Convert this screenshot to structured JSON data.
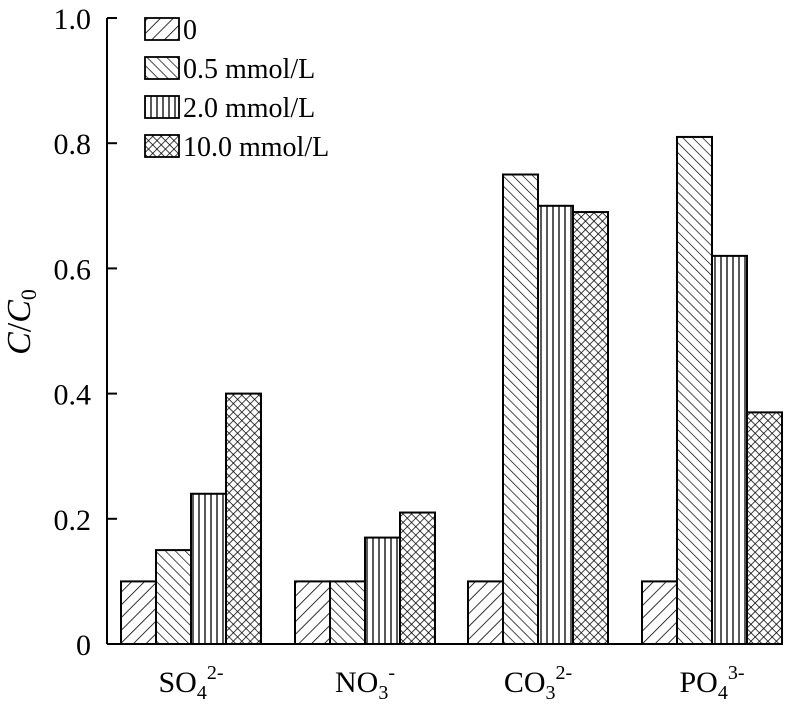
{
  "chart_data": {
    "type": "bar",
    "title": "",
    "ylabel": "C/C0",
    "ylabel_parts": {
      "main": "C",
      "sep": "/",
      "main2": "C",
      "sub": "0"
    },
    "xlabel": "",
    "ylim": [
      0,
      1.0
    ],
    "yticks": [
      "0",
      "0.2",
      "0.4",
      "0.6",
      "0.8",
      "1.0"
    ],
    "ytick_values": [
      0,
      0.2,
      0.4,
      0.6,
      0.8,
      1.0
    ],
    "categories": [
      {
        "base": "SO",
        "sub": "4",
        "sup": "2-"
      },
      {
        "base": "NO",
        "sub": "3",
        "sup": "-"
      },
      {
        "base": "CO",
        "sub": "3",
        "sup": "2-"
      },
      {
        "base": "PO",
        "sub": "4",
        "sup": "3-"
      }
    ],
    "series": [
      {
        "name": "0",
        "pattern": "diag-right",
        "values": [
          0.1,
          0.1,
          0.1,
          0.1
        ]
      },
      {
        "name": "0.5 mmol/L",
        "pattern": "diag-left",
        "values": [
          0.15,
          0.1,
          0.75,
          0.81
        ]
      },
      {
        "name": "2.0 mmol/L",
        "pattern": "vertical",
        "values": [
          0.24,
          0.17,
          0.7,
          0.62
        ]
      },
      {
        "name": "10.0 mmol/L",
        "pattern": "crosshatch",
        "values": [
          0.4,
          0.21,
          0.69,
          0.37
        ]
      }
    ],
    "legend_position": "top-left",
    "grid": false
  }
}
